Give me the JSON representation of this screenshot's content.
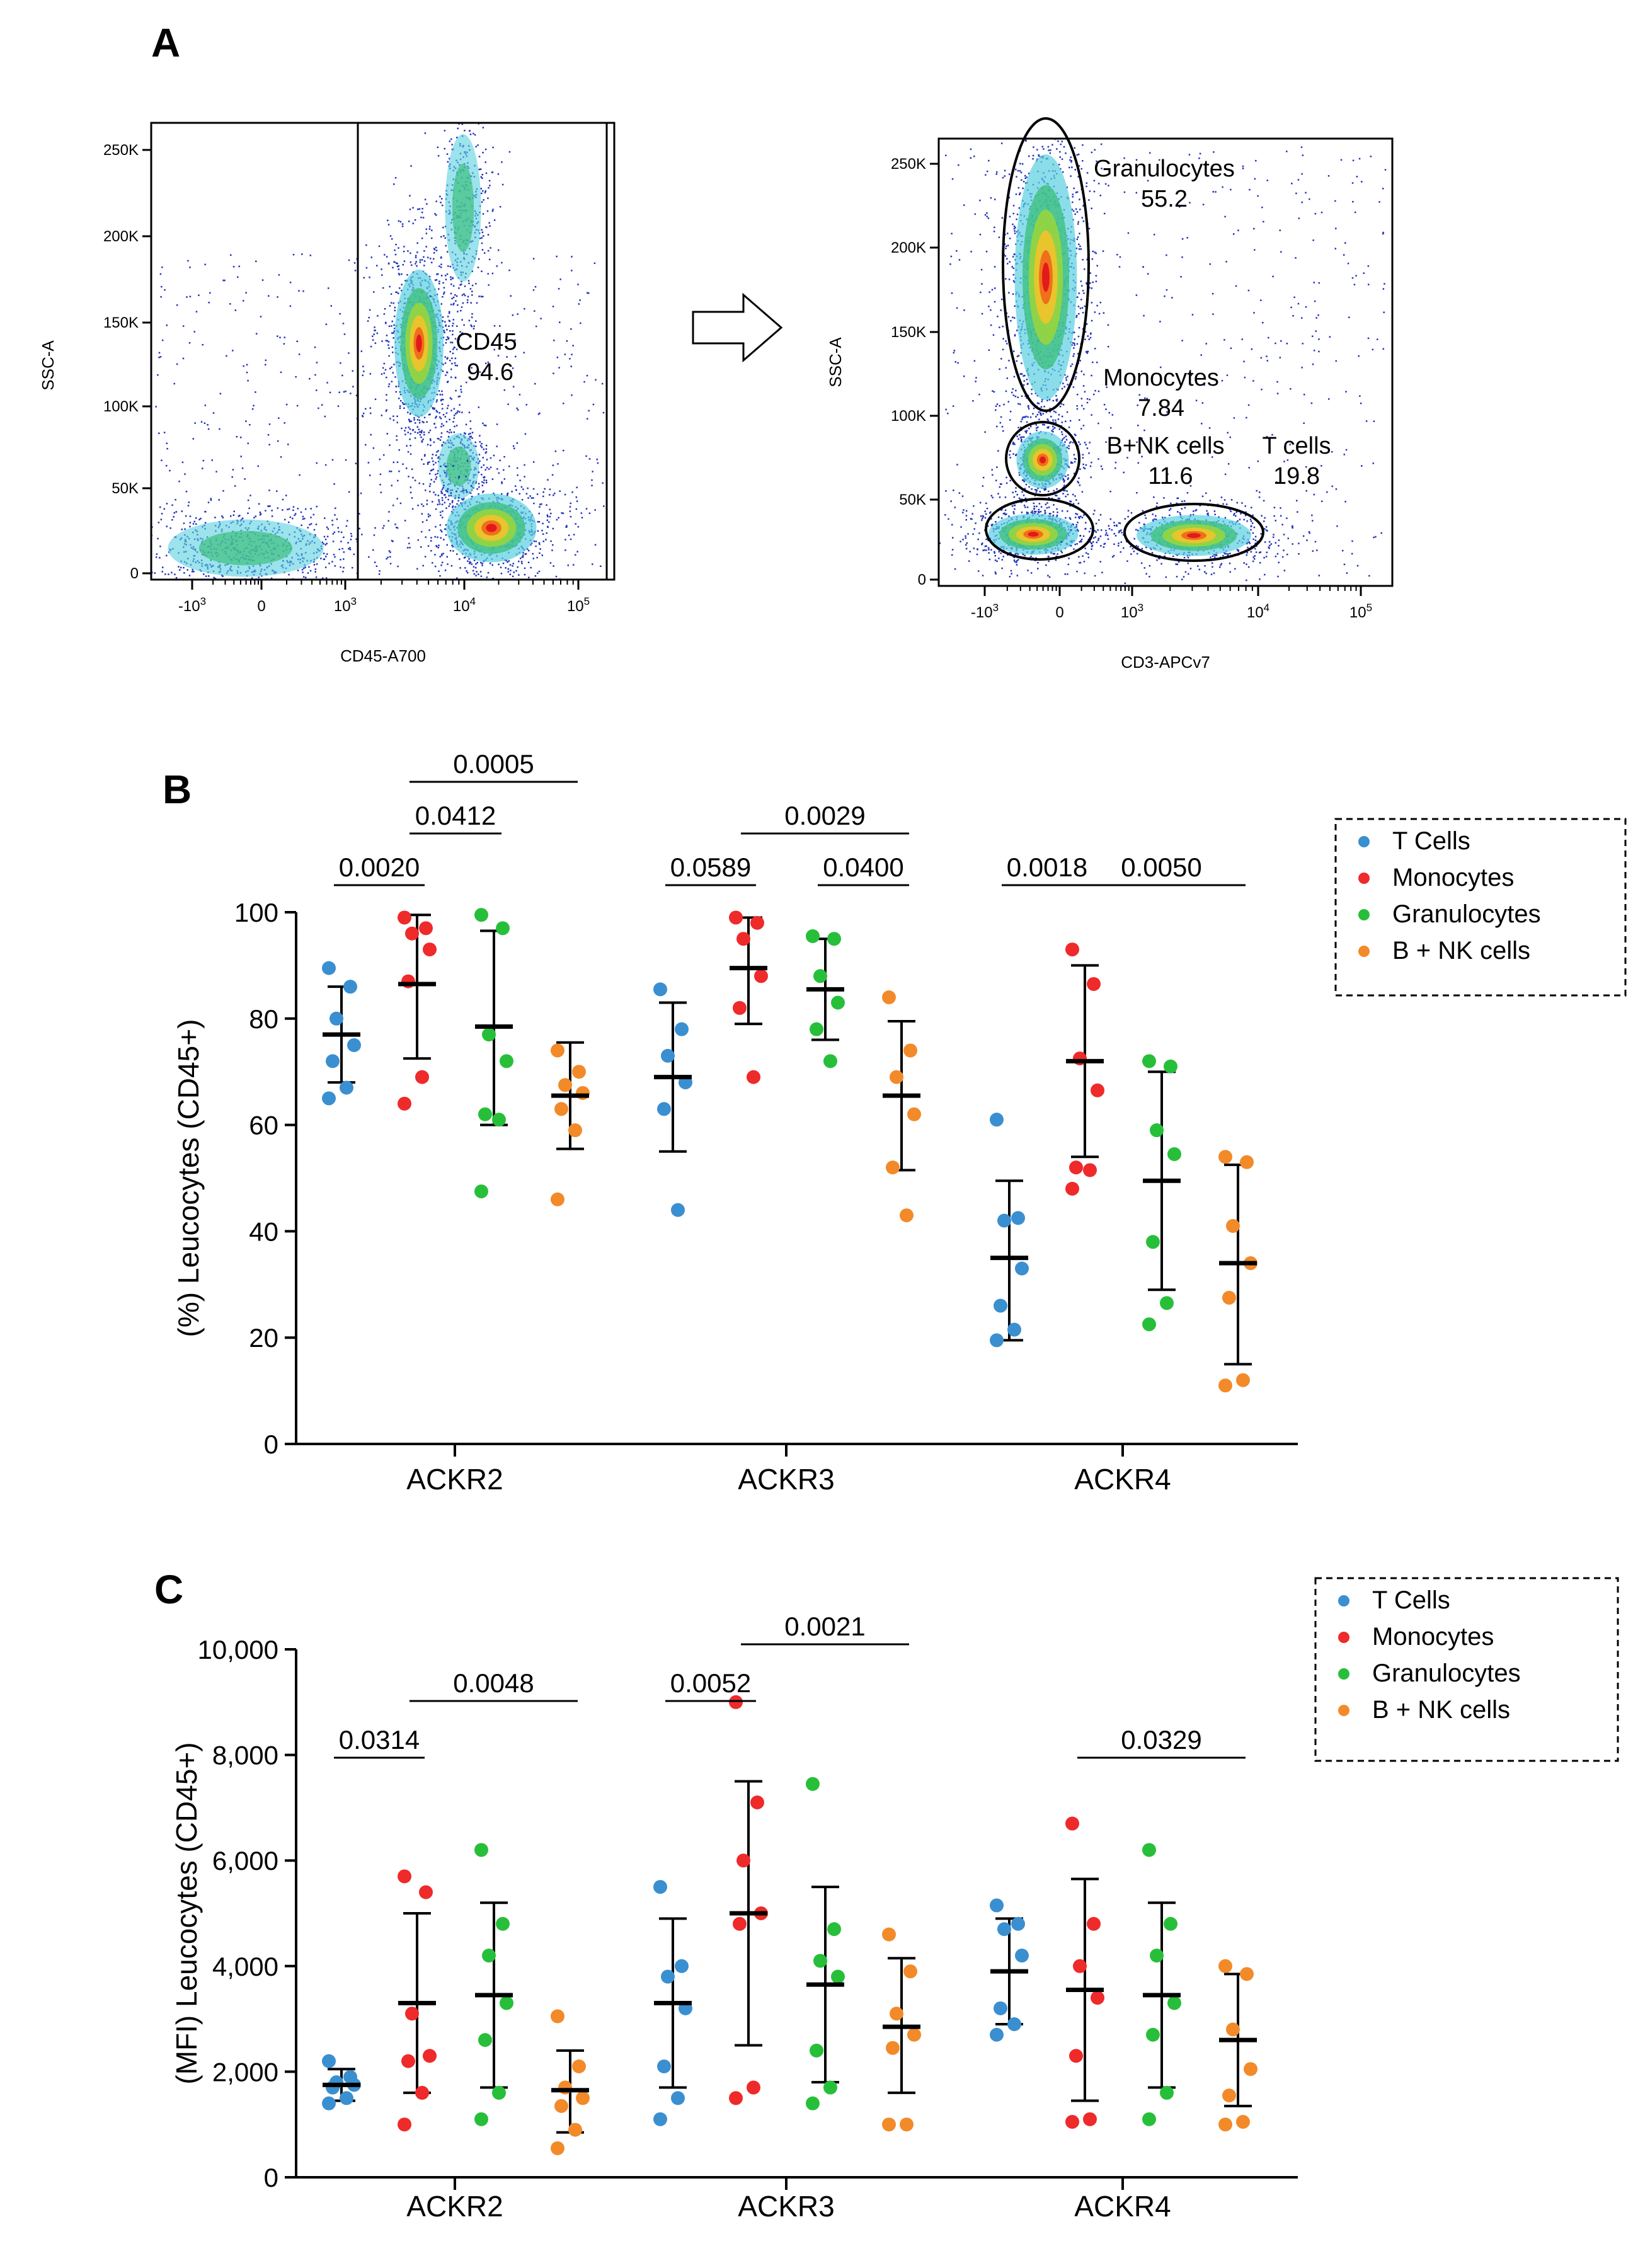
{
  "panels": {
    "A": {
      "letter": "A",
      "plot1": {
        "y_label": "SSC-A",
        "x_label": "CD45-A700",
        "y_ticks": [
          "0",
          "50K",
          "100K",
          "150K",
          "200K",
          "250K"
        ],
        "x_ticks": [
          "-10^3",
          "0",
          "10^3",
          "10^4",
          "10^5"
        ],
        "gate": {
          "name": "CD45",
          "value": "94.6"
        }
      },
      "plot2": {
        "y_label": "SSC-A",
        "x_label": "CD3-APCv7",
        "y_ticks": [
          "0",
          "50K",
          "100K",
          "150K",
          "200K",
          "250K"
        ],
        "x_ticks": [
          "-10^3",
          "0",
          "10^3",
          "10^4",
          "10^5"
        ],
        "gates": [
          {
            "name": "Granulocytes",
            "value": "55.2"
          },
          {
            "name": "Monocytes",
            "value": "7.84"
          },
          {
            "name": "B+NK cells",
            "value": "11.6"
          },
          {
            "name": "T cells",
            "value": "19.8"
          }
        ]
      }
    },
    "B": {
      "letter": "B"
    },
    "C": {
      "letter": "C"
    }
  },
  "colors": {
    "T Cells": "#3a8fd0",
    "Monocytes": "#ee2a2a",
    "Granulocytes": "#27bf3a",
    "B + NK cells": "#f28a2a"
  },
  "chart_data": [
    {
      "type": "scatter",
      "title": "",
      "panel": "B",
      "ylabel": "(%) Leucocytes (CD45+)",
      "xlabel": "",
      "ylim": [
        0,
        100
      ],
      "yticks": [
        "0",
        "20",
        "40",
        "60",
        "80",
        "100"
      ],
      "categories": [
        "ACKR2",
        "ACKR3",
        "ACKR4"
      ],
      "legend": {
        "position": "top-right",
        "entries": [
          "T Cells",
          "Monocytes",
          "Granulocytes",
          "B + NK cells"
        ]
      },
      "series": [
        {
          "name": "T Cells",
          "group": 0,
          "points": [
            89.5,
            86,
            80,
            75,
            72,
            67,
            65
          ],
          "mean": 77,
          "sd": [
            68,
            86
          ]
        },
        {
          "name": "Monocytes",
          "group": 0,
          "points": [
            99,
            97,
            96,
            93,
            87,
            69,
            64
          ],
          "mean": 86.5,
          "sd": [
            72.5,
            99.5
          ]
        },
        {
          "name": "Granulocytes",
          "group": 0,
          "points": [
            99.5,
            97,
            77,
            72,
            62,
            61,
            47.5
          ],
          "mean": 78.5,
          "sd": [
            60,
            96.5
          ]
        },
        {
          "name": "B + NK cells",
          "group": 0,
          "points": [
            74,
            70,
            67.5,
            66,
            63,
            59,
            46
          ],
          "mean": 65.5,
          "sd": [
            55.5,
            75.5
          ]
        },
        {
          "name": "T Cells",
          "group": 1,
          "points": [
            85.5,
            78,
            73,
            68,
            63,
            44
          ],
          "mean": 69,
          "sd": [
            55,
            83
          ]
        },
        {
          "name": "Monocytes",
          "group": 1,
          "points": [
            99,
            98,
            95,
            88,
            82,
            69
          ],
          "mean": 89.5,
          "sd": [
            79,
            99
          ]
        },
        {
          "name": "Granulocytes",
          "group": 1,
          "points": [
            95.5,
            95,
            88,
            83,
            78,
            72
          ],
          "mean": 85.5,
          "sd": [
            76,
            95
          ]
        },
        {
          "name": "B + NK cells",
          "group": 1,
          "points": [
            84,
            74,
            69,
            62,
            52,
            43
          ],
          "mean": 65.5,
          "sd": [
            51.5,
            79.5
          ]
        },
        {
          "name": "T Cells",
          "group": 2,
          "points": [
            61,
            42.5,
            42,
            33,
            26,
            21.5,
            19.5
          ],
          "mean": 35,
          "sd": [
            19.5,
            49.5
          ]
        },
        {
          "name": "Monocytes",
          "group": 2,
          "points": [
            93,
            86.5,
            72.5,
            66.5,
            52,
            51.5,
            48
          ],
          "mean": 72,
          "sd": [
            54,
            90
          ]
        },
        {
          "name": "Granulocytes",
          "group": 2,
          "points": [
            72,
            71,
            59,
            54.5,
            38,
            26.5,
            22.5
          ],
          "mean": 49.5,
          "sd": [
            29,
            70
          ]
        },
        {
          "name": "B + NK cells",
          "group": 2,
          "points": [
            54,
            53,
            41,
            34,
            27.5,
            12,
            11
          ],
          "mean": 34,
          "sd": [
            15,
            52.5
          ]
        }
      ],
      "annotations": [
        {
          "label": "0.0020",
          "group": 0,
          "from": 0,
          "to": 1,
          "level": 0
        },
        {
          "label": "0.0412",
          "group": 0,
          "from": 1,
          "to": 2,
          "level": 1
        },
        {
          "label": "0.0005",
          "group": 0,
          "from": 1,
          "to": 3,
          "level": 2
        },
        {
          "label": "0.0589",
          "group": 1,
          "from": 0,
          "to": 1,
          "level": 0
        },
        {
          "label": "0.0400",
          "group": 1,
          "from": 2,
          "to": 3,
          "level": 0
        },
        {
          "label": "0.0029",
          "group": 1,
          "from": 1,
          "to": 3,
          "level": 1
        },
        {
          "label": "0.0018",
          "group": 2,
          "from": 0,
          "to": 1,
          "level": 0
        },
        {
          "label": "0.0050",
          "group": 2,
          "from": 1,
          "to": 3,
          "level": 0
        }
      ]
    },
    {
      "type": "scatter",
      "title": "",
      "panel": "C",
      "ylabel": "(MFI) Leucocytes (CD45+)",
      "xlabel": "",
      "ylim": [
        0,
        10000
      ],
      "yticks": [
        "0",
        "2,000",
        "4,000",
        "6,000",
        "8,000",
        "10,000"
      ],
      "categories": [
        "ACKR2",
        "ACKR3",
        "ACKR4"
      ],
      "legend": {
        "position": "top-right",
        "entries": [
          "T Cells",
          "Monocytes",
          "Granulocytes",
          "B + NK cells"
        ]
      },
      "series": [
        {
          "name": "T Cells",
          "group": 0,
          "points": [
            2200,
            1900,
            1800,
            1750,
            1700,
            1500,
            1400
          ],
          "mean": 1750,
          "sd": [
            1450,
            2050
          ]
        },
        {
          "name": "Monocytes",
          "group": 0,
          "points": [
            5700,
            5400,
            3100,
            2300,
            2200,
            1600,
            1000
          ],
          "mean": 3300,
          "sd": [
            1600,
            5000
          ]
        },
        {
          "name": "Granulocytes",
          "group": 0,
          "points": [
            6200,
            4800,
            4200,
            3300,
            2600,
            1600,
            1100
          ],
          "mean": 3450,
          "sd": [
            1700,
            5200
          ]
        },
        {
          "name": "B + NK cells",
          "group": 0,
          "points": [
            3050,
            2100,
            1700,
            1500,
            1350,
            900,
            550
          ],
          "mean": 1650,
          "sd": [
            850,
            2400
          ]
        },
        {
          "name": "T Cells",
          "group": 1,
          "points": [
            5500,
            4000,
            3800,
            3200,
            2100,
            1500,
            1100
          ],
          "mean": 3300,
          "sd": [
            1700,
            4900
          ]
        },
        {
          "name": "Monocytes",
          "group": 1,
          "points": [
            9000,
            7100,
            6000,
            5000,
            4800,
            1700,
            1500
          ],
          "mean": 5000,
          "sd": [
            2500,
            7500
          ]
        },
        {
          "name": "Granulocytes",
          "group": 1,
          "points": [
            7450,
            4700,
            4100,
            3800,
            2400,
            1700,
            1400
          ],
          "mean": 3650,
          "sd": [
            1800,
            5500
          ]
        },
        {
          "name": "B + NK cells",
          "group": 1,
          "points": [
            4600,
            3900,
            3100,
            2700,
            2450,
            1000,
            1000
          ],
          "mean": 2850,
          "sd": [
            1600,
            4150
          ]
        },
        {
          "name": "T Cells",
          "group": 2,
          "points": [
            5150,
            4800,
            4700,
            4200,
            3200,
            2900,
            2700
          ],
          "mean": 3900,
          "sd": [
            2900,
            4900
          ]
        },
        {
          "name": "Monocytes",
          "group": 2,
          "points": [
            6700,
            4800,
            4000,
            3400,
            2300,
            1100,
            1050
          ],
          "mean": 3550,
          "sd": [
            1450,
            5650
          ]
        },
        {
          "name": "Granulocytes",
          "group": 2,
          "points": [
            6200,
            4800,
            4200,
            3300,
            2700,
            1600,
            1100
          ],
          "mean": 3450,
          "sd": [
            1700,
            5200
          ]
        },
        {
          "name": "B + NK cells",
          "group": 2,
          "points": [
            4000,
            3850,
            2800,
            2050,
            1550,
            1050,
            1000
          ],
          "mean": 2600,
          "sd": [
            1350,
            3850
          ]
        }
      ],
      "annotations": [
        {
          "label": "0.0314",
          "group": 0,
          "from": 0,
          "to": 1,
          "level": 0
        },
        {
          "label": "0.0048",
          "group": 0,
          "from": 1,
          "to": 3,
          "level": 1
        },
        {
          "label": "0.0052",
          "group": 1,
          "from": 0,
          "to": 1,
          "level": 1
        },
        {
          "label": "0.0021",
          "group": 1,
          "from": 1,
          "to": 3,
          "level": 2
        },
        {
          "label": "0.0329",
          "group": 2,
          "from": 1,
          "to": 3,
          "level": 0
        }
      ]
    }
  ]
}
